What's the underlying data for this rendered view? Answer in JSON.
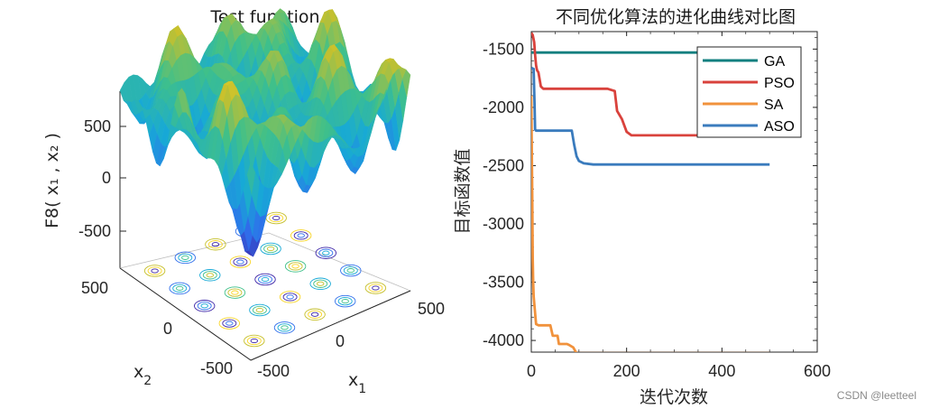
{
  "chart_data": [
    {
      "type": "surface3d",
      "title": "Test function",
      "zlabel": "F8( x₁ , x₂ )",
      "xlabel": "x",
      "xlabel_sub": "1",
      "ylabel": "x",
      "ylabel_sub": "2",
      "z_ticks": [
        "500",
        "0",
        "-500"
      ],
      "x_ticks": [
        "-500",
        "0",
        "500"
      ],
      "y_ticks": [
        "500",
        "0",
        "-500"
      ],
      "colormap": "parula",
      "contour_below": true
    },
    {
      "type": "line",
      "title": "不同优化算法的进化曲线对比图",
      "xlabel": "迭代次数",
      "ylabel": "目标函数值",
      "xlim": [
        0,
        600
      ],
      "ylim": [
        -4100,
        -1350
      ],
      "x_ticks": [
        "0",
        "200",
        "400",
        "600"
      ],
      "y_ticks": [
        "-1500",
        "-2000",
        "-2500",
        "-3000",
        "-3500",
        "-4000"
      ],
      "legend_position": "top-right",
      "series": [
        {
          "name": "GA",
          "color": "#117f7f",
          "x": [
            0,
            500
          ],
          "y": [
            -1530,
            -1530
          ]
        },
        {
          "name": "PSO",
          "color": "#d9423c",
          "x": [
            0,
            3,
            6,
            8,
            10,
            12,
            15,
            20,
            25,
            160,
            175,
            180,
            190,
            200,
            210,
            500
          ],
          "y": [
            -1360,
            -1380,
            -1440,
            -1550,
            -1640,
            -1680,
            -1700,
            -1820,
            -1840,
            -1840,
            -1860,
            -2030,
            -2100,
            -2210,
            -2240,
            -2240
          ]
        },
        {
          "name": "SA",
          "color": "#f1923c",
          "x": [
            0,
            2,
            3,
            4,
            5,
            7,
            10,
            15,
            40,
            45,
            55,
            58,
            75,
            80,
            88,
            95,
            500
          ],
          "y": [
            -1900,
            -2800,
            -3300,
            -3500,
            -3620,
            -3720,
            -3860,
            -3870,
            -3870,
            -3960,
            -3960,
            -4030,
            -4030,
            -4040,
            -4060,
            -4110,
            -4110
          ]
        },
        {
          "name": "ASO",
          "color": "#3a7bbd",
          "x": [
            0,
            2,
            5,
            7,
            8,
            10,
            85,
            90,
            95,
            100,
            110,
            130,
            500
          ],
          "y": [
            -1660,
            -1665,
            -1670,
            -2000,
            -2190,
            -2200,
            -2200,
            -2320,
            -2420,
            -2460,
            -2480,
            -2490,
            -2490
          ]
        }
      ]
    }
  ],
  "watermark": "CSDN @leetteel"
}
